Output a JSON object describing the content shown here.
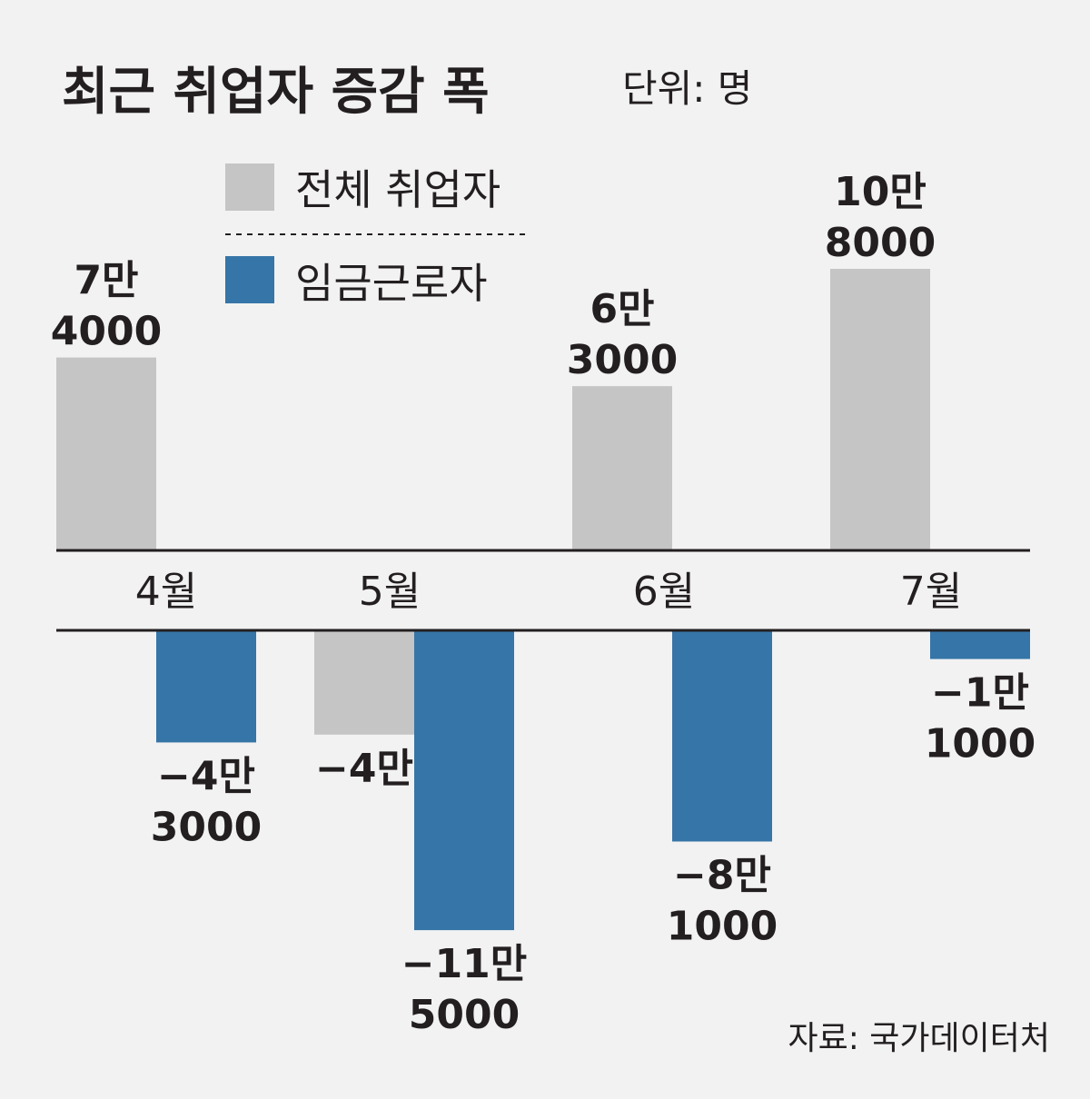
{
  "title": "최근 취업자 증감 폭",
  "unit": "단위: 명",
  "source": "자료: 국가데이터처",
  "colors": {
    "total": "#c4c5c4",
    "wage": "#3675a7",
    "text": "#231f20",
    "axis": "#231f20",
    "background": "#f2f2f2"
  },
  "chart_data": {
    "type": "bar",
    "categories": [
      "4월",
      "5월",
      "6월",
      "7월"
    ],
    "series": [
      {
        "name": "전체 취업자",
        "values": [
          74000,
          -40000,
          63000,
          108000
        ],
        "labels": [
          [
            "7만",
            "4000"
          ],
          [
            "−4만",
            ""
          ],
          [
            "6만",
            "3000"
          ],
          [
            "10만",
            "8000"
          ]
        ]
      },
      {
        "name": "임금근로자",
        "values": [
          -43000,
          -115000,
          -81000,
          -11000
        ],
        "labels": [
          [
            "−4만",
            "3000"
          ],
          [
            "−11만",
            "5000"
          ],
          [
            "−8만",
            "1000"
          ],
          [
            "−1만",
            "1000"
          ]
        ]
      }
    ],
    "legend": "top-left"
  }
}
